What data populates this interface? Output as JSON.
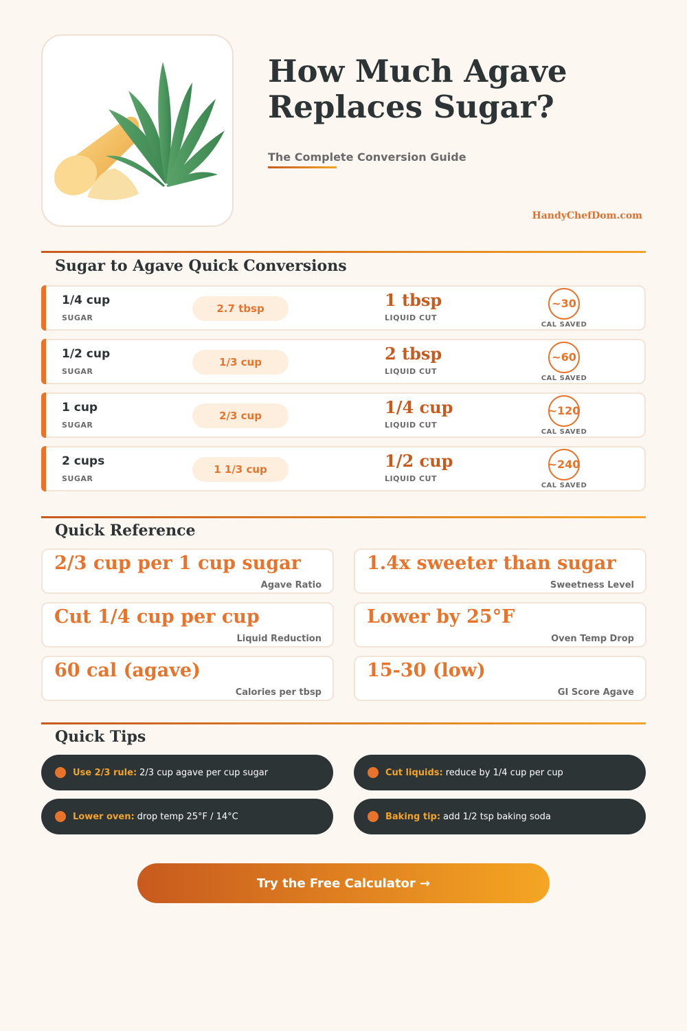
{
  "header": {
    "title_line1": "How Much Agave",
    "title_line2": "Replaces Sugar?",
    "subtitle": "The Complete Conversion Guide",
    "brand": "HandyChefDom.com",
    "image_alt": "agave plant and sugar illustration"
  },
  "conversions": {
    "heading": "Sugar to Agave Quick Conversions",
    "sugar_label": "SUGAR",
    "cut_label": "LIQUID CUT",
    "cal_label": "CAL SAVED",
    "rows": [
      {
        "sugar": "1/4 cup",
        "agave": "2.7 tbsp",
        "cut": "1 tbsp",
        "cal": "~30"
      },
      {
        "sugar": "1/2 cup",
        "agave": "1/3 cup",
        "cut": "2 tbsp",
        "cal": "~60"
      },
      {
        "sugar": "1 cup",
        "agave": "2/3 cup",
        "cut": "1/4 cup",
        "cal": "~120"
      },
      {
        "sugar": "2 cups",
        "agave": "1 1/3 cup",
        "cut": "1/2 cup",
        "cal": "~240"
      }
    ]
  },
  "reference": {
    "heading": "Quick Reference",
    "cards": [
      {
        "value": "2/3 cup per 1 cup sugar",
        "label": "Agave Ratio"
      },
      {
        "value": "1.4x sweeter than sugar",
        "label": "Sweetness Level"
      },
      {
        "value": "Cut 1/4 cup per cup",
        "label": "Liquid Reduction"
      },
      {
        "value": "Lower by 25°F",
        "label": "Oven Temp Drop"
      },
      {
        "value": "60 cal (agave)",
        "label": "Calories per tbsp"
      },
      {
        "value": "15-30 (low)",
        "label": "GI Score Agave"
      }
    ]
  },
  "tips": {
    "heading": "Quick Tips",
    "items": [
      {
        "bold": "Use 2/3 rule:",
        "text": "2/3 cup agave per cup sugar"
      },
      {
        "bold": "Cut liquids:",
        "text": "reduce by 1/4 cup per cup"
      },
      {
        "bold": "Lower oven:",
        "text": "drop temp 25°F / 14°C"
      },
      {
        "bold": "Baking tip:",
        "text": "add 1/2 tsp baking soda"
      }
    ]
  },
  "cta": {
    "label": "Try the Free Calculator →"
  },
  "colors": {
    "accent": "#e8742c",
    "accent_dark": "#c85a1e",
    "accent_light": "#f2a32a",
    "dark": "#2d3436",
    "background": "#fdf7f1"
  }
}
